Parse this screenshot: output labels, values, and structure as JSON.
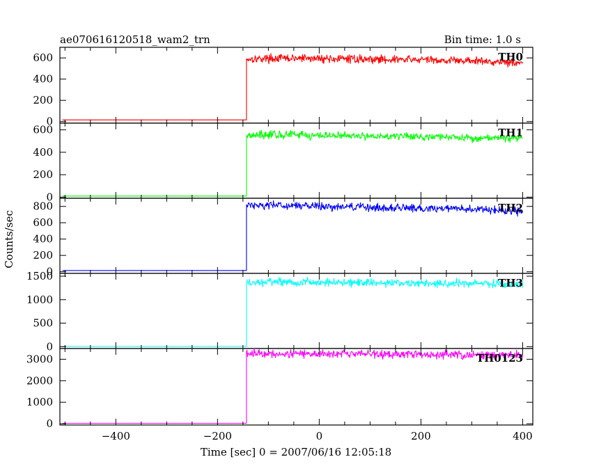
{
  "header": {
    "title": "ae070616120518_wam2_trn",
    "bin_time": "Bin time: 1.0 s"
  },
  "chart_data": {
    "type": "line",
    "title": "ae070616120518_wam2_trn",
    "xlabel": "Time [sec] 0 = 2007/06/16 12:05:18",
    "ylabel": "Counts/sec",
    "xlim": [
      -510,
      420
    ],
    "x_ticks": [
      -400,
      -200,
      0,
      200,
      400
    ],
    "x_tick_labels": [
      "−400",
      "−200",
      "0",
      "200",
      "400"
    ],
    "step_time": -143,
    "grid": false,
    "panels": [
      {
        "name": "TH0",
        "color": "#ff0000",
        "ylim": [
          -15,
          700
        ],
        "y_ticks": [
          0,
          200,
          400,
          600
        ],
        "pre_level": 15,
        "series": [
          [
            -143,
            590
          ],
          [
            -100,
            596
          ],
          [
            0,
            595
          ],
          [
            100,
            588
          ],
          [
            200,
            582
          ],
          [
            300,
            572
          ],
          [
            400,
            556
          ]
        ]
      },
      {
        "name": "TH1",
        "color": "#00ff00",
        "ylim": [
          -10,
          660
        ],
        "y_ticks": [
          0,
          200,
          400,
          600
        ],
        "pre_level": 10,
        "series": [
          [
            -143,
            555
          ],
          [
            -100,
            560
          ],
          [
            0,
            550
          ],
          [
            100,
            545
          ],
          [
            200,
            540
          ],
          [
            300,
            530
          ],
          [
            400,
            525
          ]
        ]
      },
      {
        "name": "TH2",
        "color": "#0000ff",
        "ylim": [
          -20,
          900
        ],
        "y_ticks": [
          0,
          200,
          400,
          600,
          800
        ],
        "pre_level": 15,
        "series": [
          [
            -143,
            820
          ],
          [
            -100,
            815
          ],
          [
            0,
            800
          ],
          [
            100,
            790
          ],
          [
            200,
            780
          ],
          [
            300,
            765
          ],
          [
            400,
            740
          ]
        ]
      },
      {
        "name": "TH3",
        "color": "#00ffff",
        "ylim": [
          -40,
          1560
        ],
        "y_ticks": [
          0,
          500,
          1000,
          1500
        ],
        "pre_level": 5,
        "series": [
          [
            -143,
            1350
          ],
          [
            -100,
            1370
          ],
          [
            0,
            1375
          ],
          [
            100,
            1365
          ],
          [
            200,
            1350
          ],
          [
            300,
            1345
          ],
          [
            400,
            1330
          ]
        ]
      },
      {
        "name": "TH0123",
        "color": "#ff00ff",
        "ylim": [
          -60,
          3500
        ],
        "y_ticks": [
          0,
          1000,
          2000,
          3000
        ],
        "pre_level": 20,
        "series": [
          [
            -143,
            3270
          ],
          [
            -100,
            3280
          ],
          [
            0,
            3260
          ],
          [
            100,
            3240
          ],
          [
            200,
            3220
          ],
          [
            300,
            3200
          ],
          [
            400,
            3180
          ]
        ]
      }
    ]
  }
}
